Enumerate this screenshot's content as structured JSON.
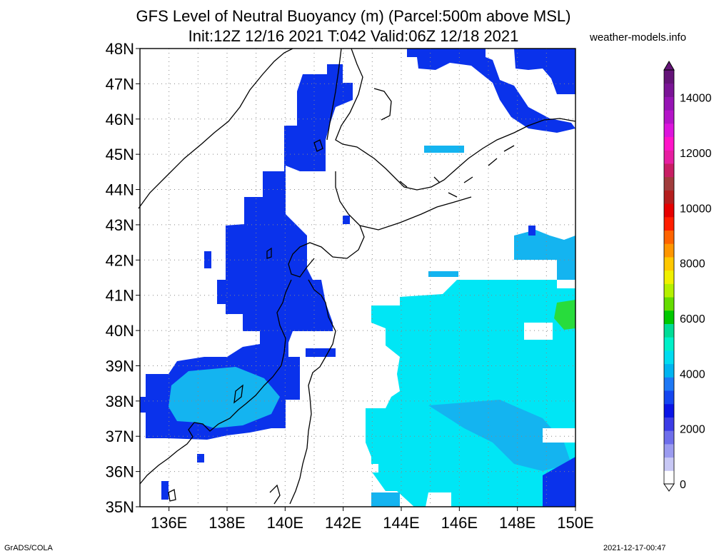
{
  "titles": {
    "line1": "GFS Level of Neutral Buoyancy (m) (Parcel:500m above MSL)",
    "line2": "Init:12Z 12/16 2021 T:042 Valid:06Z 12/18 2021",
    "credit": "weather-models.info"
  },
  "footer": {
    "left": "GrADS/COLA",
    "right": "2021-12-17-00:47"
  },
  "axes": {
    "lat_labels": [
      "35N",
      "36N",
      "37N",
      "38N",
      "39N",
      "40N",
      "41N",
      "42N",
      "43N",
      "44N",
      "45N",
      "46N",
      "47N",
      "48N"
    ],
    "lon_labels": [
      "136E",
      "138E",
      "140E",
      "142E",
      "144E",
      "146E",
      "148E",
      "150E"
    ],
    "lat_range": [
      35,
      48
    ],
    "lon_range": [
      135,
      150
    ],
    "grid": true
  },
  "colorbar": {
    "labels": [
      "0",
      "2000",
      "4000",
      "6000",
      "8000",
      "10000",
      "12000",
      "14000"
    ],
    "label_values": [
      0,
      2000,
      4000,
      6000,
      8000,
      10000,
      12000,
      14000
    ],
    "range": [
      0,
      15000
    ],
    "colors": [
      "#ffffff",
      "#c8c8f5",
      "#9b9bf0",
      "#6e6eeb",
      "#3c3ce6",
      "#0a14e6",
      "#1446f0",
      "#1e78f5",
      "#00b4f0",
      "#00dcf0",
      "#00f0c8",
      "#00dc96",
      "#00c800",
      "#64dc00",
      "#b4f000",
      "#f0f000",
      "#ffc800",
      "#ff9600",
      "#ff6400",
      "#ff1e00",
      "#e60000",
      "#b41e1e",
      "#a03c3c",
      "#c81e64",
      "#e61ea0",
      "#ff14c8",
      "#dc14dc",
      "#b414c8",
      "#9614b4",
      "#7a1496",
      "#641478"
    ]
  },
  "legend_classes": {
    "light": "#00e6f5",
    "mid": "#14b4f0",
    "dark": "#0a32eb",
    "green": "#28dc3c"
  }
}
